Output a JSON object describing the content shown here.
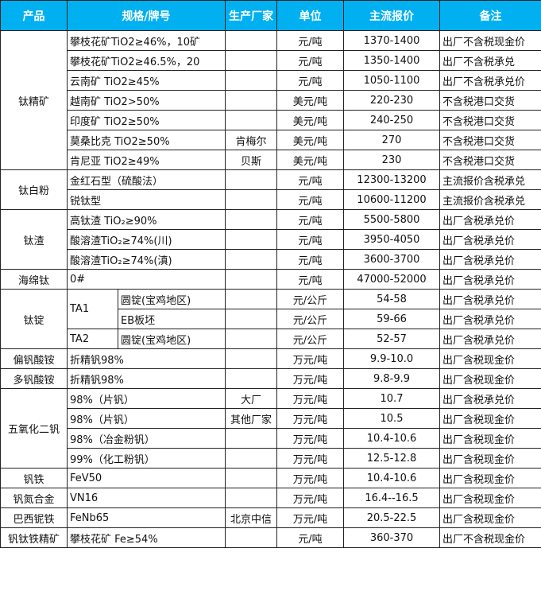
{
  "header": [
    "产品",
    "规格/牌号",
    "生产厂家",
    "单位",
    "主流报价",
    "备注"
  ],
  "header_color": "#00b0f0",
  "groups": [
    {
      "product": "钛精矿",
      "rows": [
        {
          "spec": "攀枝花矿TiO2≥46%，10矿",
          "maker": "",
          "unit": "元/吨",
          "price": "1370-1400",
          "note": "出厂不含税现金价"
        },
        {
          "spec": "攀枝花矿TiO2≥46.5%，20",
          "maker": "",
          "unit": "元/吨",
          "price": "1350-1400",
          "note": "出厂不含税承兑"
        },
        {
          "spec": "云南矿 TiO2≥45%",
          "maker": "",
          "unit": "元/吨",
          "price": "1050-1100",
          "note": "出厂不含税承兑价"
        },
        {
          "spec": "越南矿 TiO2>50%",
          "maker": "",
          "unit": "美元/吨",
          "price": "220-230",
          "note": "不含税港口交货"
        },
        {
          "spec": "印度矿 TiO2≥50%",
          "maker": "",
          "unit": "美元/吨",
          "price": "240-250",
          "note": "不含税港口交货"
        },
        {
          "spec": "莫桑比克 TiO2≥50%",
          "maker": "肯梅尔",
          "unit": "美元/吨",
          "price": "270",
          "note": "不含税港口交货"
        },
        {
          "spec": "肯尼亚 TiO2≥49%",
          "maker": "贝斯",
          "unit": "美元/吨",
          "price": "230",
          "note": "不含税港口交货"
        }
      ]
    },
    {
      "product": "钛白粉",
      "rows": [
        {
          "spec": "金红石型（硫酸法）",
          "maker": "",
          "unit": "元/吨",
          "price": "12300-13200",
          "note": "主流报价含税承兑"
        },
        {
          "spec": "锐钛型",
          "maker": "",
          "unit": "元/吨",
          "price": "10600-11200",
          "note": "主流报价含税承兑"
        }
      ]
    },
    {
      "product": "钛渣",
      "rows": [
        {
          "spec": "高钛渣 TiO₂≥90%",
          "maker": "",
          "unit": "元/吨",
          "price": "5500-5800",
          "note": "出厂含税承兑价"
        },
        {
          "spec": "酸溶渣TiO₂≥74%(川)",
          "maker": "",
          "unit": "元/吨",
          "price": "3950-4050",
          "note": "出厂含税承兑价"
        },
        {
          "spec": "酸溶渣TiO₂≥74%(滇)",
          "maker": "",
          "unit": "元/吨",
          "price": "3600-3700",
          "note": "出厂含税承兑价"
        }
      ]
    },
    {
      "product": "海绵钛",
      "rows": [
        {
          "spec": "0#",
          "maker": "",
          "unit": "元/吨",
          "price": "47000-52000",
          "note": "出厂含税承兑价"
        }
      ]
    },
    {
      "product": "钛锭",
      "rows": [
        {
          "grade": "TA1",
          "grade_span": 2,
          "spec": "圆锭(宝鸡地区)",
          "maker": "",
          "unit": "元/公斤",
          "price": "54-58",
          "note": "出厂含税承兑价"
        },
        {
          "spec": "EB板坯",
          "maker": "",
          "unit": "元/公斤",
          "price": "59-66",
          "note": "出厂含税承兑价"
        },
        {
          "grade": "TA2",
          "grade_span": 1,
          "spec": "圆锭(宝鸡地区)",
          "maker": "",
          "unit": "元/公斤",
          "price": "52-57",
          "note": "出厂含税承兑价"
        }
      ]
    },
    {
      "product": "偏钒酸铵",
      "rows": [
        {
          "spec": "折精钒98%",
          "maker": "",
          "unit": "万元/吨",
          "price": "9.9-10.0",
          "note": "出厂含税现金价"
        }
      ]
    },
    {
      "product": "多钒酸铵",
      "rows": [
        {
          "spec": "折精钒98%",
          "maker": "",
          "unit": "万元/吨",
          "price": "9.8-9.9",
          "note": "出厂含税现金价"
        }
      ]
    },
    {
      "product": "五氧化二钒",
      "rows": [
        {
          "spec": "98%（片钒）",
          "maker": "大厂",
          "unit": "万元/吨",
          "price": "10.7",
          "note": "出厂含税承兑价"
        },
        {
          "spec": "98%（片钒）",
          "maker": "其他厂家",
          "unit": "万元/吨",
          "price": "10.5",
          "note": "出厂含税现金价"
        },
        {
          "spec": "98%（冶金粉钒）",
          "maker": "",
          "unit": "万元/吨",
          "price": "10.4-10.6",
          "note": "出厂含税现金价"
        },
        {
          "spec": "99%（化工粉钒）",
          "maker": "",
          "unit": "万元/吨",
          "price": "12.5-12.8",
          "note": "出厂含税现金价"
        }
      ]
    },
    {
      "product": "钒铁",
      "rows": [
        {
          "spec": "FeV50",
          "maker": "",
          "unit": "万元/吨",
          "price": "10.4-10.6",
          "note": "出厂含税现金价"
        }
      ]
    },
    {
      "product": "钒氮合金",
      "rows": [
        {
          "spec": "VN16",
          "maker": "",
          "unit": "万元/吨",
          "price": "16.4--16.5",
          "note": "出厂含税现金价"
        }
      ]
    },
    {
      "product": "巴西铌铁",
      "rows": [
        {
          "spec": "FeNb65",
          "maker": "北京中信",
          "unit": "万元/吨",
          "price": "20.5-22.5",
          "note": "出厂含税现金价"
        }
      ]
    },
    {
      "product": "钒钛铁精矿",
      "rows": [
        {
          "spec": "攀枝花矿 Fe≥54%",
          "maker": "",
          "unit": "元/吨",
          "price": "360-370",
          "note": "出厂不含税现金价"
        }
      ]
    }
  ]
}
